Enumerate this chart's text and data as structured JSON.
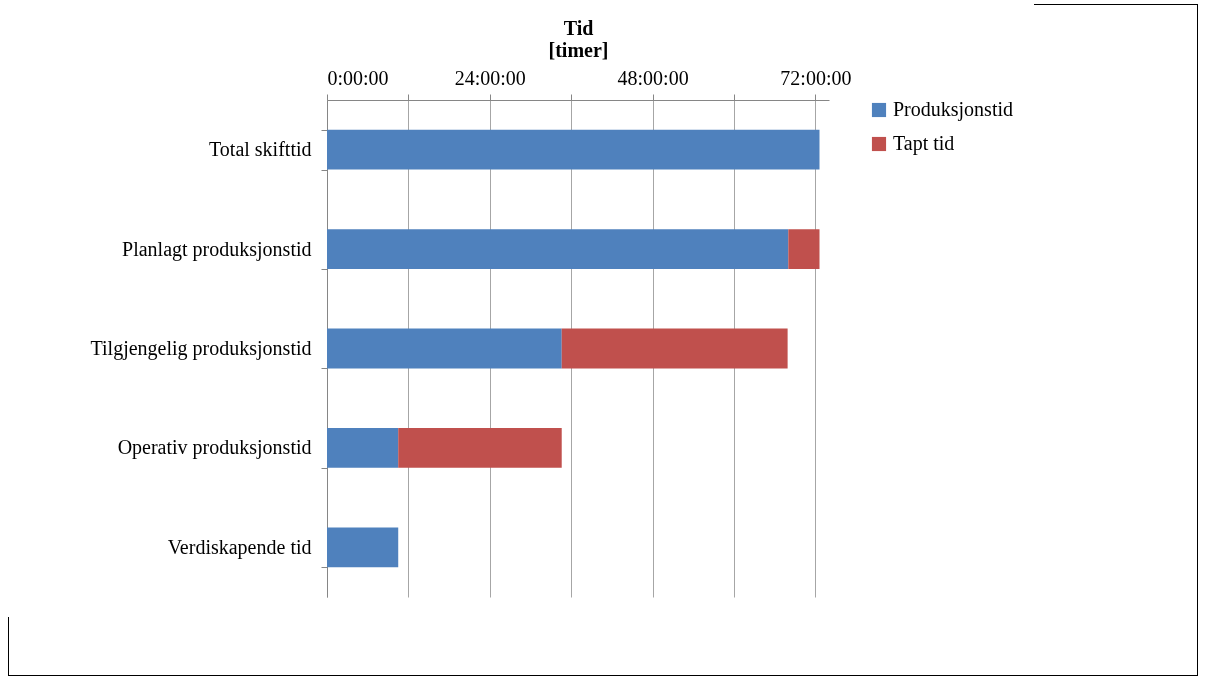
{
  "chart_data": {
    "type": "bar",
    "orientation": "horizontal",
    "stacked": true,
    "xlabel": "Tid\n[timer]",
    "categories": [
      "Total skifttid",
      "Planlagt produksjonstid",
      "Tilgjengelig produksjonstid",
      "Operativ produksjonstid",
      "Verdiskapende tid"
    ],
    "series": [
      {
        "name": "Produksjonstid",
        "color": "#4f81bd",
        "values": [
          72.6,
          68,
          34.6,
          10.5,
          10.5
        ]
      },
      {
        "name": "Tapt tid",
        "color": "#c0504d",
        "values": [
          null,
          4.6,
          33.3,
          24.1,
          null
        ]
      }
    ],
    "xlim": [
      0,
      74
    ],
    "xticks": [
      {
        "value": 0,
        "label": "0:00:00"
      },
      {
        "value": 12,
        "label": null
      },
      {
        "value": 24,
        "label": "24:00:00"
      },
      {
        "value": 36,
        "label": null
      },
      {
        "value": 48,
        "label": "48:00:00"
      },
      {
        "value": 60,
        "label": null
      },
      {
        "value": 72,
        "label": "72:00:00"
      }
    ],
    "grid": "x",
    "legend": "right"
  }
}
